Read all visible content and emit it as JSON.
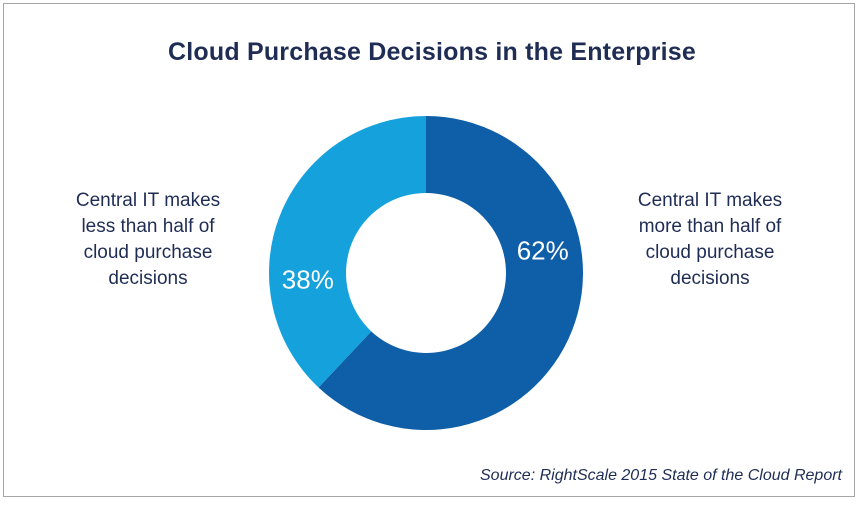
{
  "chart_data": {
    "type": "pie",
    "subtype": "donut",
    "title": "Cloud Purchase Decisions in the Enterprise",
    "slices": [
      {
        "label": "Central IT makes more than half of cloud purchase decisions",
        "label_lines": [
          "Central IT makes",
          "more than half of",
          "cloud purchase",
          "decisions"
        ],
        "value": 62,
        "display": "62%",
        "color": "#0f5ea8"
      },
      {
        "label": "Central IT makes less than half of cloud purchase decisions",
        "label_lines": [
          "Central IT makes",
          "less than half of",
          "cloud purchase",
          "decisions"
        ],
        "value": 38,
        "display": "38%",
        "color": "#15a2dc"
      }
    ],
    "source": "Source: RightScale 2015 State of the Cloud Report",
    "legend": "none"
  }
}
